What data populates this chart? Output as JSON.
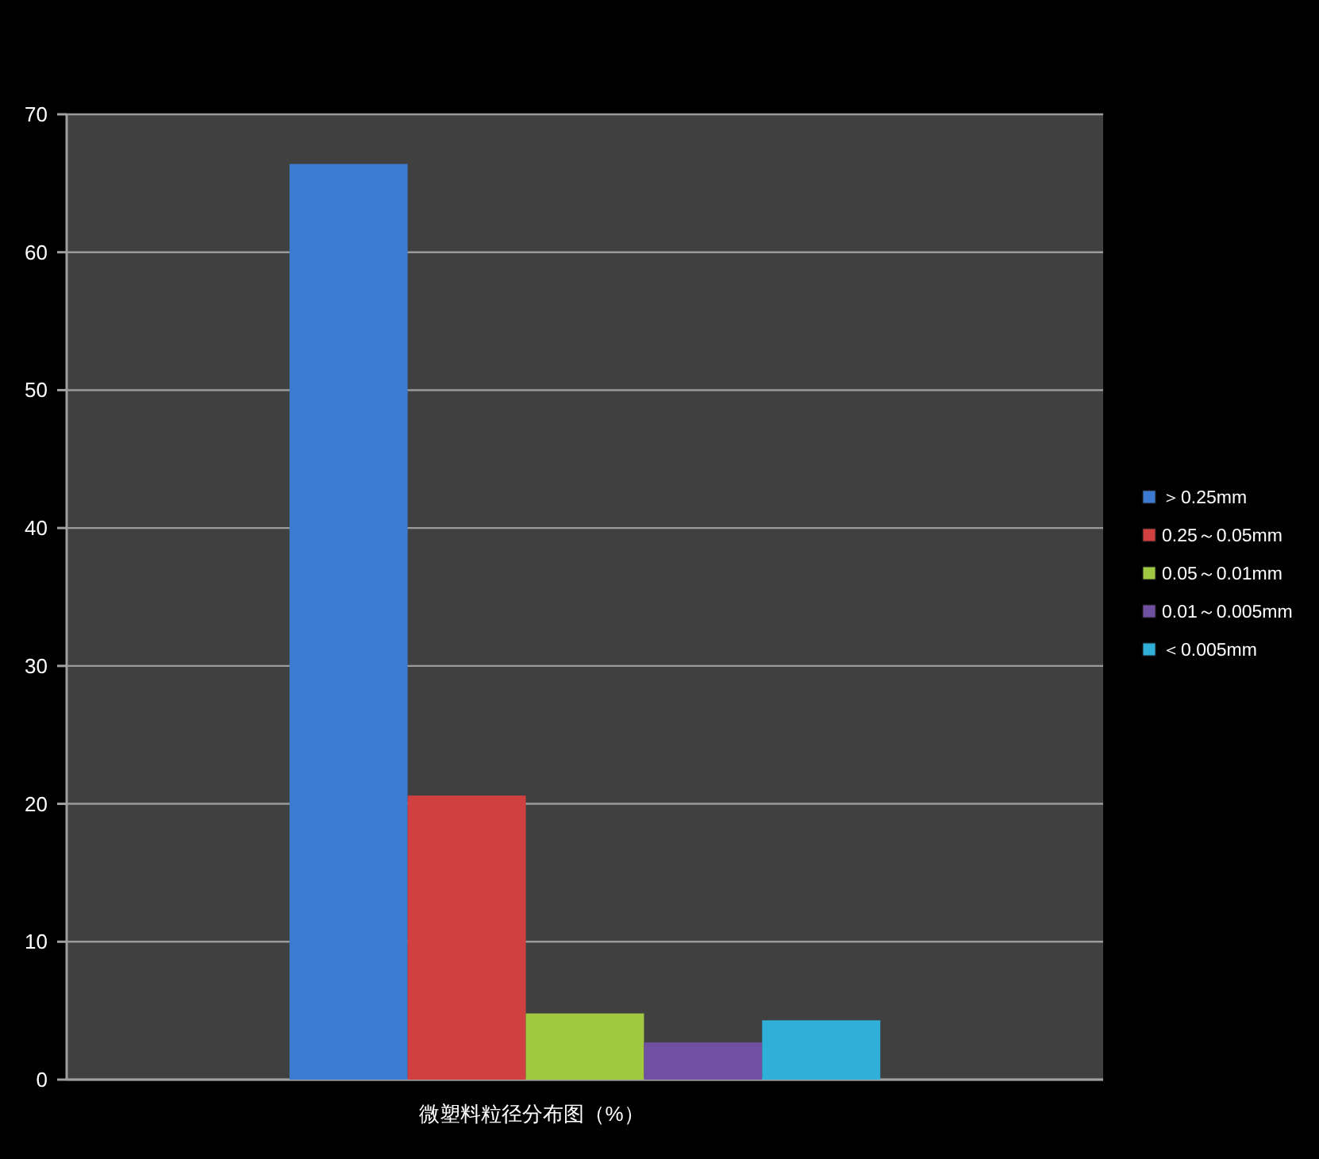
{
  "chart_data": {
    "type": "bar",
    "categories": [
      null
    ],
    "xlabel": "微塑料粒径分布图（%）",
    "series": [
      {
        "name": "＞0.25mm",
        "color": "#3c7cd0",
        "values": [
          66.4
        ]
      },
      {
        "name": "0.25～0.05mm",
        "color": "#d04040",
        "values": [
          20.6
        ]
      },
      {
        "name": "0.05～0.01mm",
        "color": "#a0c840",
        "values": [
          4.8
        ]
      },
      {
        "name": "0.01～0.005mm",
        "color": "#7050a0",
        "values": [
          2.7
        ]
      },
      {
        "name": "＜0.005mm",
        "color": "#30b0d8",
        "values": [
          4.3
        ]
      }
    ],
    "ylim": [
      0,
      70
    ],
    "yticks": [
      0,
      10,
      20,
      30,
      40,
      50,
      60,
      70
    ],
    "grid": "y",
    "legend": "right"
  }
}
